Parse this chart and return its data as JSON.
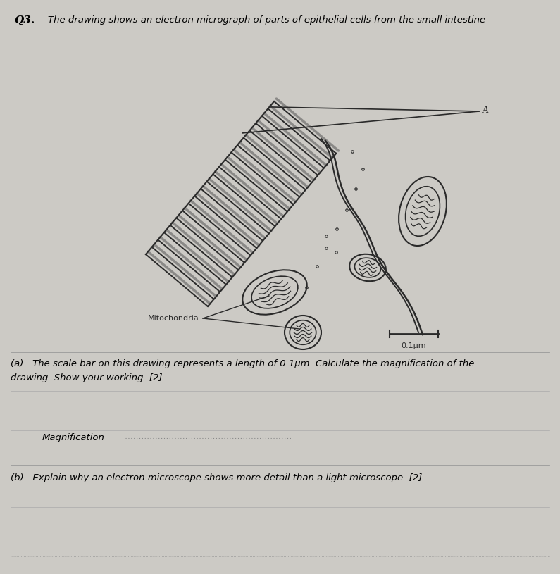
{
  "bg_color": "#cccac5",
  "line_color": "#2a2a2a",
  "title_text": "Q3.",
  "title_desc": "The drawing shows an electron micrograph of parts of epithelial cells from the small intestine",
  "label_A": "A",
  "label_mitochondria": "Mitochondria",
  "scale_bar_label": "0.1μm",
  "question_a_1": "(a)   The scale bar on this drawing represents a length of 0.1μm. Calculate the magnification of the",
  "question_a_2": "drawing. Show your working. [2]",
  "magnification_label": "Magnification",
  "question_b": "(b)   Explain why an electron microscope shows more detail than a light microscope. [2]",
  "fig_width": 7.95,
  "fig_height": 8.15
}
